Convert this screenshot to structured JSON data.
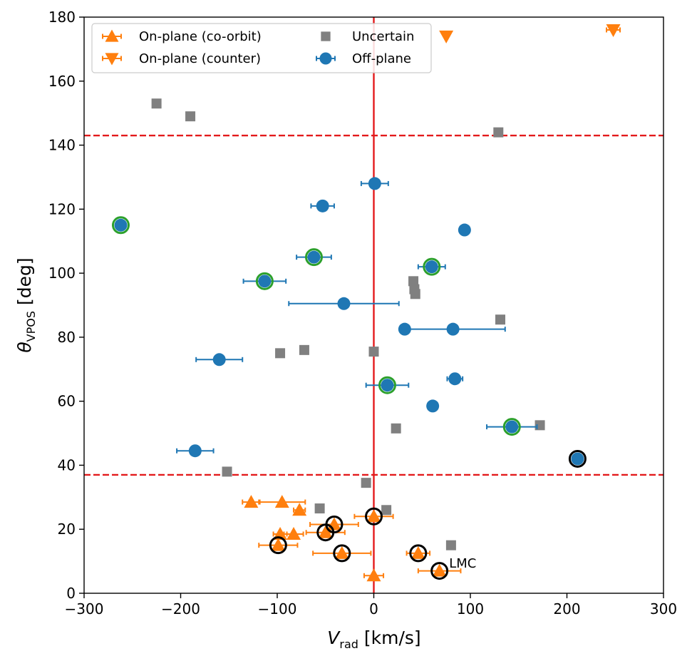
{
  "chart_data": {
    "type": "scatter",
    "xlabel": {
      "main": "V",
      "sub": "rad",
      "unit": " [km/s]"
    },
    "ylabel": {
      "main": "θ",
      "sub": "VPOS",
      "unit": " [deg]"
    },
    "xlim": [
      -300,
      300
    ],
    "ylim": [
      0,
      180
    ],
    "xticks": [
      -300,
      -200,
      -100,
      0,
      100,
      200,
      300
    ],
    "yticks": [
      0,
      20,
      40,
      60,
      80,
      100,
      120,
      140,
      160,
      180
    ],
    "xtick_labels": [
      "−300",
      "−200",
      "−100",
      "0",
      "100",
      "200",
      "300"
    ],
    "ytick_labels": [
      "0",
      "20",
      "40",
      "60",
      "80",
      "100",
      "120",
      "140",
      "160",
      "180"
    ],
    "grid": false,
    "legend": {
      "placement": "upper-left",
      "entries": [
        {
          "label": "On-plane (co-orbit)",
          "marker": "triangle-up",
          "color": "#ff7f0e"
        },
        {
          "label": "On-plane (counter)",
          "marker": "triangle-down",
          "color": "#ff7f0e"
        },
        {
          "label": "Uncertain",
          "marker": "square",
          "color": "#808080"
        },
        {
          "label": "Off-plane",
          "marker": "circle",
          "color": "#1f77b4"
        }
      ]
    },
    "reference_lines": [
      {
        "orientation": "vertical",
        "value": 0,
        "style": "solid",
        "color": "#e31a1c"
      },
      {
        "orientation": "horizontal",
        "value": 143,
        "style": "dashed",
        "color": "#e31a1c"
      },
      {
        "orientation": "horizontal",
        "value": 37,
        "style": "dashed",
        "color": "#e31a1c"
      }
    ],
    "annotations": [
      {
        "text": "LMC",
        "x": 78,
        "y": 8
      }
    ],
    "series": [
      {
        "name": "On-plane (co-orbit)",
        "marker": "triangle-up",
        "color": "#ff7f0e",
        "points": [
          {
            "x": -127,
            "y": 28.5,
            "xerr": 9
          },
          {
            "x": -95,
            "y": 28.5,
            "xerr": 24
          },
          {
            "x": -77,
            "y": 26,
            "xerr": 6
          },
          {
            "x": -97,
            "y": 18.5,
            "xerr": 7
          },
          {
            "x": -83,
            "y": 18.5,
            "xerr": 10
          },
          {
            "x": -99,
            "y": 15,
            "xerr": 20
          },
          {
            "x": -50,
            "y": 19,
            "xerr": 20
          },
          {
            "x": -41,
            "y": 21.5,
            "xerr": 25
          },
          {
            "x": -33,
            "y": 12.5,
            "xerr": 30
          },
          {
            "x": 0,
            "y": 24,
            "xerr": 20
          },
          {
            "x": 46,
            "y": 12.5,
            "xerr": 12
          },
          {
            "x": 68,
            "y": 7,
            "xerr": 22
          },
          {
            "x": 0,
            "y": 5.5,
            "xerr": 10
          }
        ]
      },
      {
        "name": "On-plane (counter)",
        "marker": "triangle-down",
        "color": "#ff7f0e",
        "points": [
          {
            "x": 75,
            "y": 174,
            "xerr": 0
          },
          {
            "x": 248,
            "y": 176,
            "xerr": 7
          }
        ]
      },
      {
        "name": "Uncertain",
        "marker": "square",
        "color": "#808080",
        "points": [
          {
            "x": -225,
            "y": 153
          },
          {
            "x": -190,
            "y": 149
          },
          {
            "x": 129,
            "y": 144
          },
          {
            "x": 41,
            "y": 97.5
          },
          {
            "x": 42,
            "y": 95
          },
          {
            "x": 43,
            "y": 93.5
          },
          {
            "x": 131,
            "y": 85.5
          },
          {
            "x": -97,
            "y": 75
          },
          {
            "x": -72,
            "y": 76
          },
          {
            "x": 0,
            "y": 75.5
          },
          {
            "x": 23,
            "y": 51.5
          },
          {
            "x": 172,
            "y": 52.5
          },
          {
            "x": -152,
            "y": 38
          },
          {
            "x": -8,
            "y": 34.5
          },
          {
            "x": -56,
            "y": 26.5
          },
          {
            "x": 13,
            "y": 26
          },
          {
            "x": 80,
            "y": 15
          }
        ]
      },
      {
        "name": "Off-plane",
        "marker": "circle",
        "color": "#1f77b4",
        "points": [
          {
            "x": 1,
            "y": 128,
            "xerr": 14
          },
          {
            "x": -53,
            "y": 121,
            "xerr": 12
          },
          {
            "x": 94,
            "y": 113.5,
            "xerr": 0
          },
          {
            "x": -62,
            "y": 105,
            "xerr": 18
          },
          {
            "x": 60,
            "y": 102,
            "xerr": 14
          },
          {
            "x": -113,
            "y": 97.5,
            "xerr": 22
          },
          {
            "x": -31,
            "y": 90.5,
            "xerr": 57
          },
          {
            "x": 32,
            "y": 82.5,
            "xerr": 0
          },
          {
            "x": 82,
            "y": 82.5,
            "xerr": 54
          },
          {
            "x": -160,
            "y": 73,
            "xerr": 24
          },
          {
            "x": 84,
            "y": 67,
            "xerr": 8
          },
          {
            "x": 14,
            "y": 65,
            "xerr": 22
          },
          {
            "x": 61,
            "y": 58.5,
            "xerr": 0
          },
          {
            "x": 143,
            "y": 52,
            "xerr": 26
          },
          {
            "x": -185,
            "y": 44.5,
            "xerr": 19
          },
          {
            "x": 211,
            "y": 42,
            "xerr": 0
          },
          {
            "x": -262,
            "y": 115,
            "xerr": 0
          }
        ]
      },
      {
        "name": "Green outline highlight",
        "marker": "ring",
        "color": "#2ca02c",
        "points": [
          {
            "x": -262,
            "y": 115
          },
          {
            "x": -62,
            "y": 105
          },
          {
            "x": 60,
            "y": 102
          },
          {
            "x": -113,
            "y": 97.5
          },
          {
            "x": 14,
            "y": 65
          },
          {
            "x": 143,
            "y": 52
          }
        ]
      },
      {
        "name": "Black outline highlight",
        "marker": "ring",
        "color": "#000000",
        "points": [
          {
            "x": 211,
            "y": 42
          },
          {
            "x": 0,
            "y": 24
          },
          {
            "x": -41,
            "y": 21.5
          },
          {
            "x": -50,
            "y": 19
          },
          {
            "x": -99,
            "y": 15
          },
          {
            "x": -33,
            "y": 12.5
          },
          {
            "x": 46,
            "y": 12.5
          },
          {
            "x": 68,
            "y": 7
          }
        ]
      }
    ]
  }
}
